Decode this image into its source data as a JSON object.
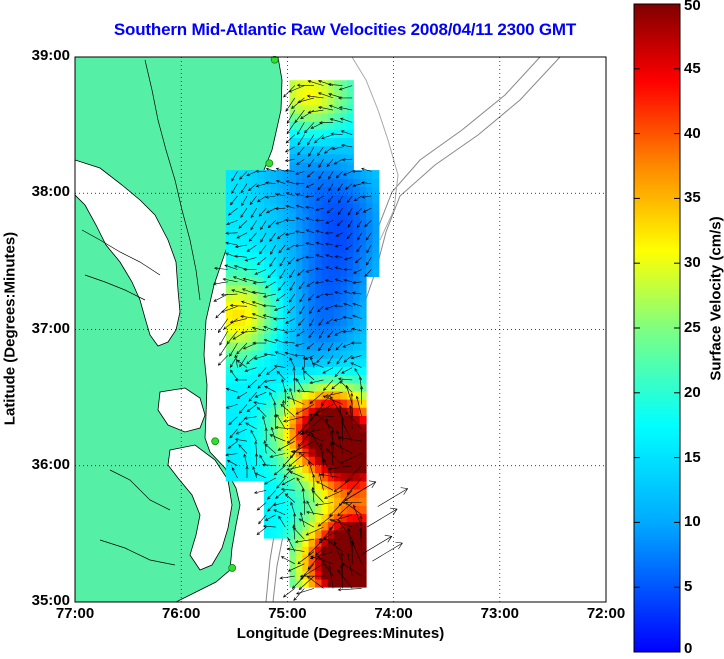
{
  "title": "Southern Mid-Atlantic Raw Velocities 2008/04/11 2300 GMT",
  "x_axis": {
    "label": "Longitude (Degrees:Minutes)",
    "ticks": [
      "77:00",
      "76:00",
      "75:00",
      "74:00",
      "73:00",
      "72:00"
    ]
  },
  "y_axis": {
    "label": "Latitude (Degrees:Minutes)",
    "ticks": [
      "39:00",
      "38:00",
      "37:00",
      "36:00",
      "35:00"
    ]
  },
  "colorbar": {
    "label": "Surface Velocity (cm/s)",
    "ticks": [
      "50",
      "45",
      "40",
      "35",
      "30",
      "25",
      "20",
      "15",
      "10",
      "5",
      "0"
    ],
    "range": [
      0,
      50
    ],
    "colormap": "jet"
  },
  "map": {
    "lon_range": [
      -77,
      -72
    ],
    "lat_range": [
      35,
      39
    ],
    "grid": true,
    "land_color": "#55f0a5",
    "station_color": "#33dd33"
  }
}
